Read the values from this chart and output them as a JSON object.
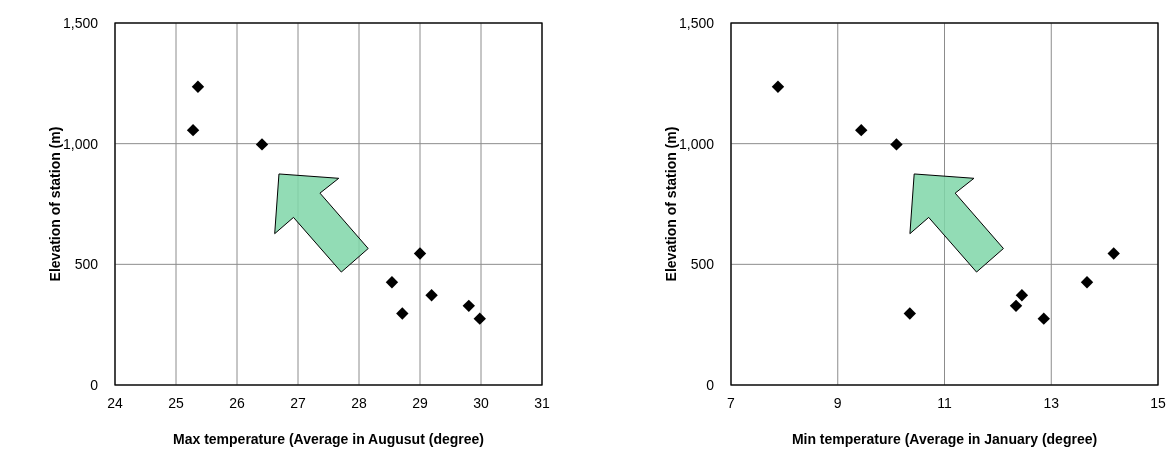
{
  "chart_data": [
    {
      "type": "scatter",
      "xlabel": "Max temperature (Average in Augusut  (degree)",
      "ylabel": "Elevation of station (m)",
      "xlim": [
        24,
        31
      ],
      "xticks": [
        24,
        25,
        26,
        27,
        28,
        29,
        30,
        31
      ],
      "ylim": [
        0,
        1500
      ],
      "yticks": [
        0,
        {
          "value": 500,
          "label": "500"
        },
        {
          "value": 1000,
          "label": "1,000"
        },
        {
          "value": 1500,
          "label": "1,500"
        }
      ],
      "grid": true,
      "marker": "diamond",
      "series": [
        {
          "color": "#000000",
          "x": [
            25.36,
            25.28,
            26.41,
            29.0,
            28.54,
            29.19,
            28.71,
            29.8,
            29.98
          ],
          "values": [
            1236,
            1056,
            997,
            545,
            426,
            372,
            296,
            328,
            275
          ]
        }
      ]
    },
    {
      "type": "scatter",
      "xlabel": "Min temperature (Average in January (degree)",
      "ylabel": "Elevation of station (m)",
      "xlim": [
        7,
        15
      ],
      "xticks": [
        7,
        9,
        11,
        13,
        15
      ],
      "ylim": [
        0,
        1500
      ],
      "yticks": [
        0,
        {
          "value": 500,
          "label": "500"
        },
        {
          "value": 1000,
          "label": "1,000"
        },
        {
          "value": 1500,
          "label": "1,500"
        }
      ],
      "grid": true,
      "marker": "diamond",
      "series": [
        {
          "color": "#000000",
          "x": [
            7.88,
            9.44,
            10.1,
            14.17,
            13.67,
            12.45,
            12.34,
            10.35,
            12.86
          ],
          "values": [
            1236,
            1056,
            997,
            545,
            426,
            372,
            328,
            296,
            275
          ]
        }
      ]
    }
  ]
}
